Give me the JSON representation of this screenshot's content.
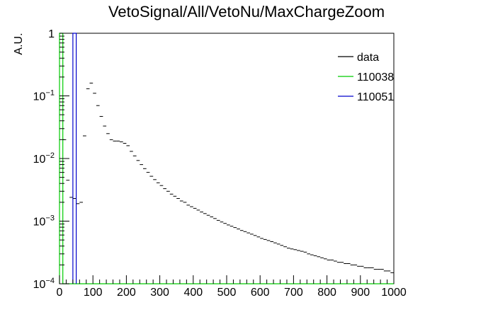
{
  "chart_data": {
    "type": "histogram",
    "title": "VetoSignal/All/VetoNu/MaxChargeZoom",
    "xlabel": "",
    "ylabel": "A.U.",
    "xlim": [
      0,
      1000
    ],
    "ylim": [
      0.0001,
      1
    ],
    "yscale": "log",
    "grid": false,
    "legend_position": "top-right",
    "x_ticks": [
      0,
      100,
      200,
      300,
      400,
      500,
      600,
      700,
      800,
      900,
      1000
    ],
    "x_tick_labels": [
      "0",
      "100",
      "200",
      "300",
      "400",
      "500",
      "600",
      "700",
      "800",
      "900",
      "1000"
    ],
    "y_ticks": [
      0.0001,
      0.001,
      0.01,
      0.1,
      1
    ],
    "y_tick_labels": [
      {
        "base": "10",
        "exp": "−4"
      },
      {
        "base": "10",
        "exp": "−3"
      },
      {
        "base": "10",
        "exp": "−2"
      },
      {
        "base": "10",
        "exp": "−1"
      },
      {
        "base": "1",
        "exp": ""
      }
    ],
    "series": [
      {
        "name": "data",
        "color": "#000000",
        "style": "markers",
        "bin_width": 10,
        "x": [
          5,
          15,
          25,
          35,
          45,
          55,
          65,
          75,
          85,
          95,
          105,
          115,
          125,
          135,
          145,
          155,
          165,
          175,
          185,
          195,
          205,
          215,
          225,
          235,
          245,
          255,
          265,
          275,
          285,
          295,
          305,
          315,
          325,
          335,
          345,
          355,
          365,
          375,
          385,
          395,
          405,
          415,
          425,
          435,
          445,
          455,
          465,
          475,
          485,
          495,
          505,
          515,
          525,
          535,
          545,
          555,
          565,
          575,
          585,
          595,
          605,
          615,
          625,
          635,
          645,
          655,
          665,
          675,
          685,
          695,
          705,
          715,
          725,
          735,
          745,
          755,
          765,
          775,
          785,
          795,
          805,
          815,
          825,
          835,
          845,
          855,
          865,
          875,
          885,
          895,
          905,
          915,
          925,
          935,
          945,
          955,
          965,
          975,
          985,
          995
        ],
        "values": [
          0.0001,
          0.02,
          0.0045,
          0.0024,
          0.0023,
          0.0019,
          0.002,
          0.023,
          0.13,
          0.16,
          0.11,
          0.07,
          0.047,
          0.033,
          0.025,
          0.02,
          0.019,
          0.019,
          0.0185,
          0.0175,
          0.016,
          0.013,
          0.011,
          0.0093,
          0.008,
          0.0069,
          0.006,
          0.0052,
          0.0046,
          0.0041,
          0.0037,
          0.0033,
          0.003,
          0.0027,
          0.0025,
          0.0023,
          0.0021,
          0.002,
          0.0018,
          0.0017,
          0.0016,
          0.0015,
          0.0014,
          0.00132,
          0.00124,
          0.00117,
          0.0011,
          0.00103,
          0.00097,
          0.00092,
          0.00087,
          0.00083,
          0.00079,
          0.00075,
          0.00071,
          0.00068,
          0.00065,
          0.00062,
          0.00059,
          0.00056,
          0.00053,
          0.00051,
          0.00049,
          0.00047,
          0.00045,
          0.00043,
          0.00041,
          0.00039,
          0.00037,
          0.00036,
          0.00035,
          0.00034,
          0.00033,
          0.00032,
          0.0003,
          0.00029,
          0.00028,
          0.00027,
          0.00026,
          0.00025,
          0.00024,
          0.00024,
          0.00023,
          0.00022,
          0.00022,
          0.00021,
          0.00021,
          0.0002,
          0.0002,
          0.00019,
          0.00019,
          0.00018,
          0.00018,
          0.00018,
          0.00017,
          0.00017,
          0.00017,
          0.00016,
          0.00016,
          0.00015
        ]
      },
      {
        "name": "110038",
        "color": "#00cc00",
        "style": "histogram",
        "bin_edges": [
          0,
          10,
          1000
        ],
        "values": [
          1,
          0.0001
        ]
      },
      {
        "name": "110051",
        "color": "#0000cc",
        "style": "histogram",
        "bin_edges": [
          40,
          50
        ],
        "values": [
          1
        ]
      }
    ]
  }
}
